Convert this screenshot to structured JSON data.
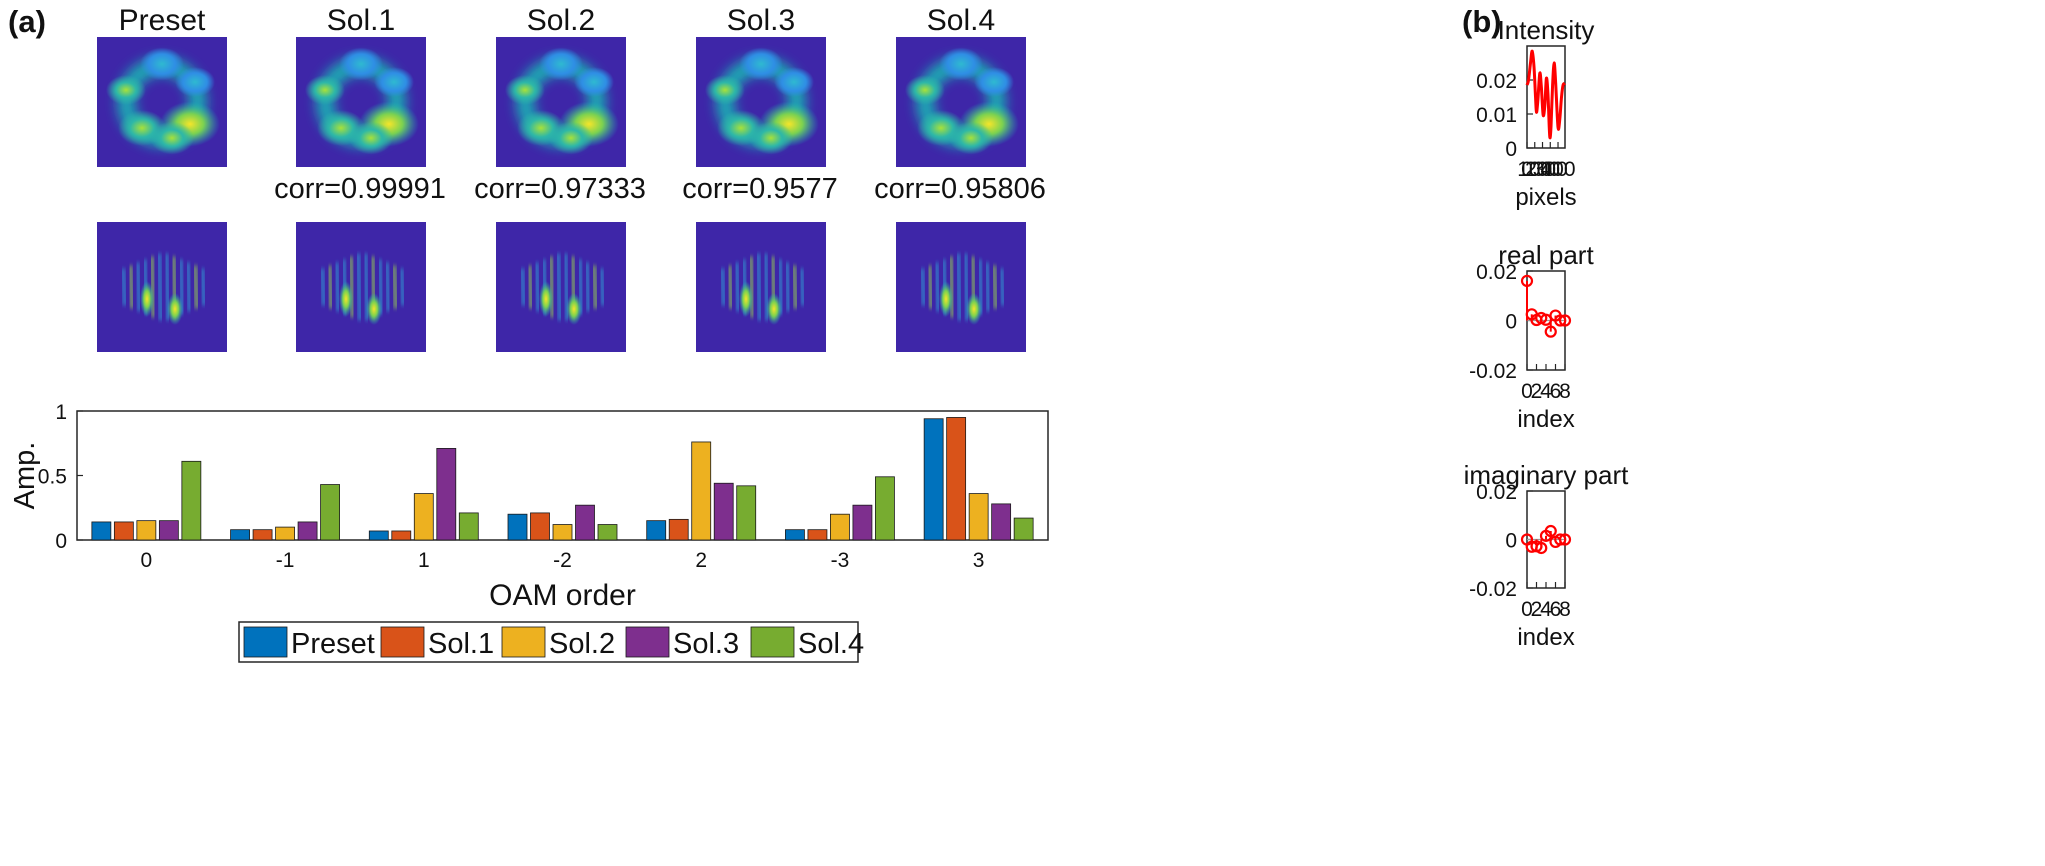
{
  "panel_labels": {
    "a": "(a)",
    "b": "(b)"
  },
  "thumbnail_titles": [
    "Preset",
    "Sol.1",
    "Sol.2",
    "Sol.3",
    "Sol.4"
  ],
  "correlations": [
    "corr=0.99991",
    "corr=0.97333",
    "corr=0.9577",
    "corr=0.95806"
  ],
  "colors": {
    "series": [
      "#0072BD",
      "#D95319",
      "#EDB120",
      "#7E2F8E",
      "#77AC30"
    ],
    "trace": "#FF0000",
    "thumb_bg": "#3E26A8",
    "thumb_ring": "#14BFB5",
    "thumb_hot": "#F5E52A"
  },
  "chart_data": [
    {
      "type": "bar",
      "categories": [
        "0",
        "-1",
        "1",
        "-2",
        "2",
        "-3",
        "3"
      ],
      "series": [
        {
          "name": "Preset",
          "values": [
            0.14,
            0.08,
            0.07,
            0.2,
            0.15,
            0.08,
            0.94
          ]
        },
        {
          "name": "Sol.1",
          "values": [
            0.14,
            0.08,
            0.07,
            0.21,
            0.16,
            0.08,
            0.95
          ]
        },
        {
          "name": "Sol.2",
          "values": [
            0.15,
            0.1,
            0.36,
            0.12,
            0.76,
            0.2,
            0.36
          ]
        },
        {
          "name": "Sol.3",
          "values": [
            0.15,
            0.14,
            0.71,
            0.27,
            0.44,
            0.27,
            0.28
          ]
        },
        {
          "name": "Sol.4",
          "values": [
            0.61,
            0.43,
            0.21,
            0.12,
            0.42,
            0.49,
            0.17
          ]
        }
      ],
      "xlabel": "OAM order",
      "ylabel": "Amp.",
      "ylim": [
        0,
        1
      ],
      "yticks": [
        "0",
        "0.5",
        "1"
      ],
      "legend": "bottom"
    },
    {
      "type": "line",
      "title": "Intensity",
      "xlabel": "pixels",
      "ylabel": "",
      "xlim": [
        0,
        490
      ],
      "ylim": [
        0,
        0.03
      ],
      "xticks": [
        "0",
        "100",
        "200",
        "300",
        "400"
      ],
      "yticks": [
        "0",
        "0.01",
        "0.02"
      ],
      "x": [
        0,
        20,
        45,
        67,
        90,
        110,
        122,
        140,
        165,
        185,
        208,
        230,
        250,
        270,
        288,
        298,
        310,
        330,
        350,
        370,
        390,
        405,
        425,
        445,
        465,
        490
      ],
      "series": [
        {
          "values": [
            0.0185,
            0.02,
            0.025,
            0.0285,
            0.024,
            0.015,
            0.0105,
            0.014,
            0.022,
            0.018,
            0.0097,
            0.0125,
            0.0205,
            0.016,
            0.0055,
            0.003,
            0.0065,
            0.0185,
            0.025,
            0.019,
            0.0095,
            0.0055,
            0.009,
            0.015,
            0.0185,
            0.019
          ]
        }
      ]
    },
    {
      "type": "scatter",
      "title": "real part",
      "xlabel": "index",
      "ylabel": "",
      "xlim": [
        0,
        8
      ],
      "ylim": [
        -0.02,
        0.02
      ],
      "xticks": [
        "0",
        "2",
        "4",
        "6",
        "8"
      ],
      "yticks": [
        "-0.02",
        "0",
        "0.02"
      ],
      "x": [
        0,
        1,
        2,
        3,
        4,
        5,
        6,
        7,
        8
      ],
      "series": [
        {
          "values": [
            0.016,
            0.0025,
            0.0002,
            0.001,
            0.0003,
            -0.0045,
            0.002,
            0.0,
            0.0
          ]
        }
      ]
    },
    {
      "type": "scatter",
      "title": "imaginary part",
      "xlabel": "index",
      "ylabel": "",
      "xlim": [
        0,
        8
      ],
      "ylim": [
        -0.02,
        0.02
      ],
      "xticks": [
        "0",
        "2",
        "4",
        "6",
        "8"
      ],
      "yticks": [
        "-0.02",
        "0",
        "0.02"
      ],
      "x": [
        0,
        1,
        2,
        3,
        4,
        5,
        6,
        7,
        8
      ],
      "series": [
        {
          "values": [
            0.0,
            -0.003,
            -0.0028,
            -0.0035,
            0.0015,
            0.0035,
            -0.001,
            0.0,
            0.0
          ]
        }
      ]
    }
  ]
}
